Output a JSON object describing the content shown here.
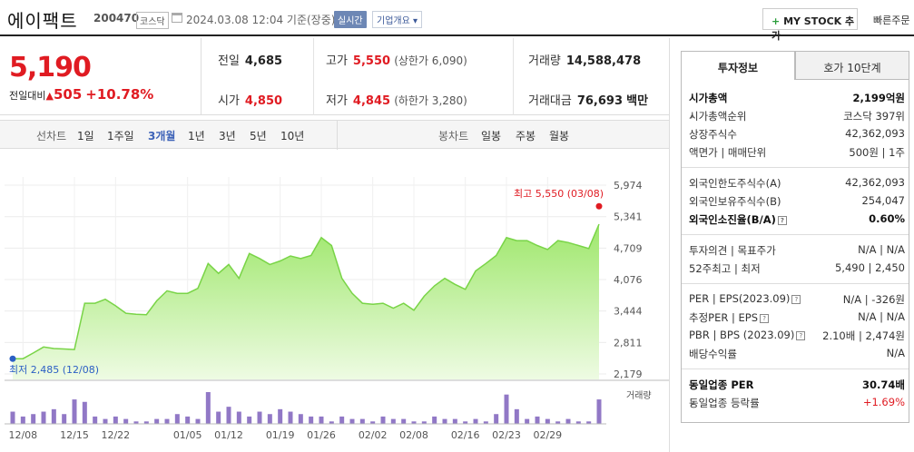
{
  "header": {
    "name": "에이팩트",
    "code": "200470",
    "market": "코스닥",
    "datetime": "2024.03.08 12:04 기준(장중)",
    "realtime": "실시간",
    "overview": "기업개요",
    "mystock": "MY STOCK 추가",
    "quick_order": "빠른주문"
  },
  "price": {
    "current": "5,190",
    "change_label": "전일대비",
    "change": "505",
    "change_pct": "+10.78%"
  },
  "stats": {
    "prev_label": "전일",
    "prev": "4,685",
    "high_label": "고가",
    "high": "5,550",
    "upper_limit": "(상한가 6,090)",
    "volume_label": "거래량",
    "volume": "14,588,478",
    "open_label": "시가",
    "open": "4,850",
    "low_label": "저가",
    "low": "4,845",
    "lower_limit": "(하한가 3,280)",
    "value_label": "거래대금",
    "value": "76,693",
    "value_unit": "백만"
  },
  "tabs": {
    "line_label": "선차트",
    "line_periods": [
      "1일",
      "1주일",
      "3개월",
      "1년",
      "3년",
      "5년",
      "10년"
    ],
    "candle_label": "봉차트",
    "candle_periods": [
      "일봉",
      "주봉",
      "월봉"
    ]
  },
  "chart_data": {
    "type": "line",
    "yticks": [
      "5,974",
      "5,341",
      "4,709",
      "4,076",
      "3,444",
      "2,811",
      "2,179"
    ],
    "ytick_values": [
      5974,
      5341,
      4709,
      4076,
      3444,
      2811,
      2179
    ],
    "xticks": [
      "12/08",
      "12/15",
      "12/22",
      "01/05",
      "01/12",
      "01/19",
      "01/26",
      "02/02",
      "02/08",
      "02/16",
      "02/23",
      "02/29"
    ],
    "xtick_index": [
      1,
      6,
      10,
      17,
      21,
      26,
      30,
      35,
      39,
      44,
      48,
      52
    ],
    "ylim": [
      2179,
      5974
    ],
    "high_annotation": "최고 5,550 (03/08)",
    "low_annotation": "최저 2,485 (12/08)",
    "volume_label": "거래량",
    "prices": [
      2485,
      2485,
      2600,
      2720,
      2690,
      2680,
      2670,
      3600,
      3600,
      3680,
      3550,
      3400,
      3380,
      3370,
      3650,
      3850,
      3800,
      3800,
      3900,
      4400,
      4200,
      4380,
      4100,
      4600,
      4500,
      4380,
      4450,
      4550,
      4500,
      4560,
      4920,
      4760,
      4100,
      3800,
      3600,
      3580,
      3600,
      3500,
      3600,
      3460,
      3740,
      3950,
      4100,
      3980,
      3880,
      4250,
      4400,
      4560,
      4920,
      4860,
      4860,
      4760,
      4680,
      4860,
      4820,
      4760,
      4700,
      5190
    ],
    "volumes": [
      0.5,
      0.3,
      0.4,
      0.5,
      0.6,
      0.4,
      1.0,
      0.9,
      0.3,
      0.2,
      0.3,
      0.2,
      0.1,
      0.1,
      0.2,
      0.2,
      0.4,
      0.3,
      0.2,
      1.3,
      0.5,
      0.7,
      0.5,
      0.3,
      0.5,
      0.4,
      0.6,
      0.5,
      0.4,
      0.3,
      0.3,
      0.1,
      0.3,
      0.2,
      0.2,
      0.1,
      0.3,
      0.2,
      0.2,
      0.1,
      0.1,
      0.3,
      0.2,
      0.2,
      0.1,
      0.2,
      0.1,
      0.4,
      1.2,
      0.6,
      0.2,
      0.3,
      0.2,
      0.1,
      0.2,
      0.1,
      0.1,
      1.0
    ]
  },
  "info": {
    "tab_active": "투자정보",
    "tab_inactive": "호가 10단계",
    "rows": [
      {
        "k": "시가총액",
        "v": "2,199억원",
        "bold": true
      },
      {
        "k": "시가총액순위",
        "v": "코스닥 397위"
      },
      {
        "k": "상장주식수",
        "v": "42,362,093"
      },
      {
        "k": "액면가 | 매매단위",
        "v": "500원 | 1주"
      },
      {
        "k": "외국인한도주식수(A)",
        "v": "42,362,093"
      },
      {
        "k": "외국인보유주식수(B)",
        "v": "254,047"
      },
      {
        "k": "외국인소진율(B/A)",
        "v": "0.60%",
        "bold": true
      },
      {
        "k": "투자의견 | 목표주가",
        "v": "N/A | N/A"
      },
      {
        "k": "52주최고 | 최저",
        "v": "5,490 | 2,450"
      },
      {
        "k": "PER | EPS(2023.09)",
        "v": "N/A | -326원"
      },
      {
        "k": "추정PER | EPS",
        "v": "N/A | N/A"
      },
      {
        "k": "PBR | BPS (2023.09)",
        "v": "2.10배 | 2,474원"
      },
      {
        "k": "배당수익률",
        "v": "N/A"
      },
      {
        "k": "동일업종 PER",
        "v": "30.74배",
        "bold": true
      },
      {
        "k": "동일업종 등락률",
        "v": "+1.69%",
        "red": true
      }
    ]
  }
}
